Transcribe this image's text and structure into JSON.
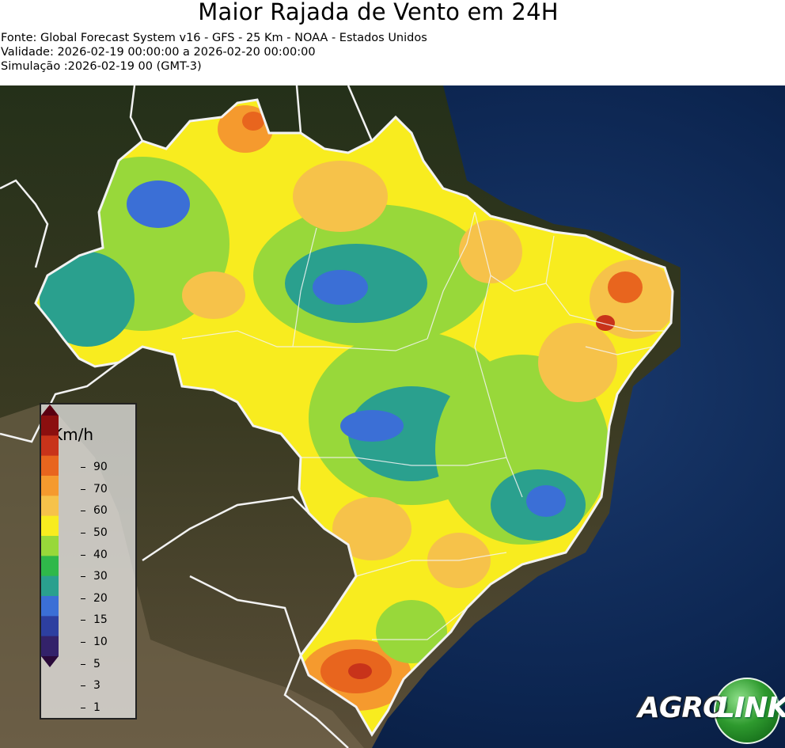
{
  "header": {
    "title": "Maior Rajada de Vento em 24H",
    "source": "Fonte: Global Forecast System v16 - GFS - 25 Km - NOAA - Estados Unidos",
    "validity": "Validade: 2026-02-19 00:00:00 a 2026-02-20 00:00:00",
    "simulation": "Simulação :2026-02-19 00 (GMT-3)"
  },
  "legend": {
    "unit": "Km/h",
    "ticks": [
      "90",
      "70",
      "60",
      "50",
      "40",
      "30",
      "20",
      "15",
      "10",
      "5",
      "3",
      "1"
    ],
    "colors": [
      "#5a0010",
      "#8b0f0f",
      "#c8331a",
      "#e8651e",
      "#f59a2e",
      "#f6c24a",
      "#f8ec1f",
      "#98d83a",
      "#2fb84a",
      "#2aa08e",
      "#3b6fd6",
      "#2d3fa0",
      "#33226a",
      "#2a0a3a"
    ]
  },
  "logo": {
    "part1": "AGRO",
    "part2": "LINK"
  }
}
